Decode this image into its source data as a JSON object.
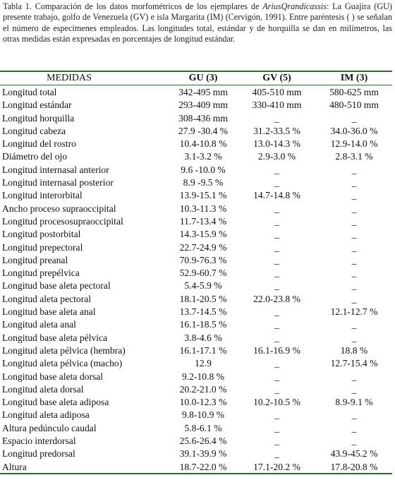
{
  "caption": {
    "before_italic": "Tabla 1. Comparación de los datos morfométricos de los ejemplares de ",
    "italic": "AriusQrandicassis",
    "after_italic": ": La Guajira (GU) presente trabajo, golfo de Venezuela (GV) e isla Margarita (IM) (Cervigón, 1991). Entre paréntesis ( ) se señalan el número de especímenes empleados. Las longitudes total, estándar y de horquilla se dan en milímetros, las otras medidas están expresadas en porcentajes de longitud estándar."
  },
  "table": {
    "headers": {
      "medidas": "MEDIDAS",
      "gu": "GU (3)",
      "gv": "GV (5)",
      "im": "IM (3)"
    },
    "rows": [
      {
        "name": "Longitud total",
        "gu": "342-495 mm",
        "gv": "405-510 mm",
        "im": "580-625 mm"
      },
      {
        "name": "Longitud estándar",
        "gu": "293-409 mm",
        "gv": "330-410 mm",
        "im": "480-510 mm"
      },
      {
        "name": "Longitud horquilla",
        "gu": "308-436 mm",
        "gv": "_",
        "im": "_"
      },
      {
        "name": "Longitud cabeza",
        "gu": "27.9 -30.4 %",
        "gv": "31.2-33.5 %",
        "im": "34.0-36.0 %"
      },
      {
        "name": "Longitud del rostro",
        "gu": "10.4-10.8 %",
        "gv": "13.0-14.3 %",
        "im": "12.9-14.0 %"
      },
      {
        "name": "Diámetro del ojo",
        "gu": "3.1-3.2 %",
        "gv": "2.9-3.0 %",
        "im": "2.8-3.1 %"
      },
      {
        "name": "Longitud internasal anterior",
        "gu": "9.6 -10.0 %",
        "gv": "_",
        "im": "_"
      },
      {
        "name": "Longitud internasal posterior",
        "gu": "8.9 -9.5 %",
        "gv": "_",
        "im": "_"
      },
      {
        "name": "Longitud interorbital",
        "gu": "13.9-15.1 %",
        "gv": "14.7-14.8 %",
        "im": "_"
      },
      {
        "name": "Ancho proceso supraoccipital",
        "gu": "10.3-11.3 %",
        "gv": "_",
        "im": "_"
      },
      {
        "name": "Longitud procesosupraoccipital",
        "gu": "11.7-13.4 %",
        "gv": "_",
        "im": "_"
      },
      {
        "name": "Longitud postorbital",
        "gu": "14.3-15.9 %",
        "gv": "_",
        "im": "_"
      },
      {
        "name": "Longitud  prepectoral",
        "gu": "22.7-24.9 %",
        "gv": "_",
        "im": "_"
      },
      {
        "name": "Longitud preanal",
        "gu": "70.9-76.3 %",
        "gv": "_",
        "im": "_"
      },
      {
        "name": "Longitud prepélvica",
        "gu": "52.9-60.7 %",
        "gv": "_",
        "im": "_"
      },
      {
        "name": "Longitud base aleta pectoral",
        "gu": "5.4-5.9 %",
        "gv": "_",
        "im": "_"
      },
      {
        "name": "Longitud aleta pectoral",
        "gu": "18.1-20.5 %",
        "gv": "22.0-23.8 %",
        "im": "_"
      },
      {
        "name": "Longitud base aleta anal",
        "gu": "13.7-14.5 %",
        "gv": "_",
        "im": "12.1-12.7 %"
      },
      {
        "name": "Longitud aleta anal",
        "gu": "16.1-18.5 %",
        "gv": "_",
        "im": "_"
      },
      {
        "name": "Longitud base aleta pélvica",
        "gu": "3.8-4.6 %",
        "gv": "_",
        "im": "_"
      },
      {
        "name": "Longitud aleta pélvica (hembra)",
        "gu": "16.1-17.1 %",
        "gv": "16.1-16.9 %",
        "im": "18.8 %"
      },
      {
        "name": "Longitud aleta pélvica (macho)",
        "gu": "12.9",
        "gv": "_",
        "im": "12.7-15.4 %"
      },
      {
        "name": "Longitud base aleta dorsal",
        "gu": "9.2-10.8 %",
        "gv": "_",
        "im": "_"
      },
      {
        "name": "Longitud aleta dorsal",
        "gu": "20.2-21.0 %",
        "gv": "_",
        "im": "_"
      },
      {
        "name": "Longitud base aleta adiposa",
        "gu": "10.0-12.3 %",
        "gv": "10.2-10.5 %",
        "im": "8.9-9.1 %"
      },
      {
        "name": "Longitud aleta adiposa",
        "gu": "9.8-10.9 %",
        "gv": "_",
        "im": "_"
      },
      {
        "name": "Altura pedúnculo caudal",
        "gu": "5.8-6.1 %",
        "gv": "_",
        "im": "_"
      },
      {
        "name": "Espacio interdorsal",
        "gu": "25.6-26.4 %",
        "gv": "_",
        "im": "_"
      },
      {
        "name": "Longitud predorsal",
        "gu": "39.1-39.9 %",
        "gv": "_",
        "im": "43.9-45.2 %"
      },
      {
        "name": "Altura",
        "gu": "18.7-22.0 %",
        "gv": "17.1-20.2 %",
        "im": "17.8-20.8 %"
      }
    ]
  }
}
